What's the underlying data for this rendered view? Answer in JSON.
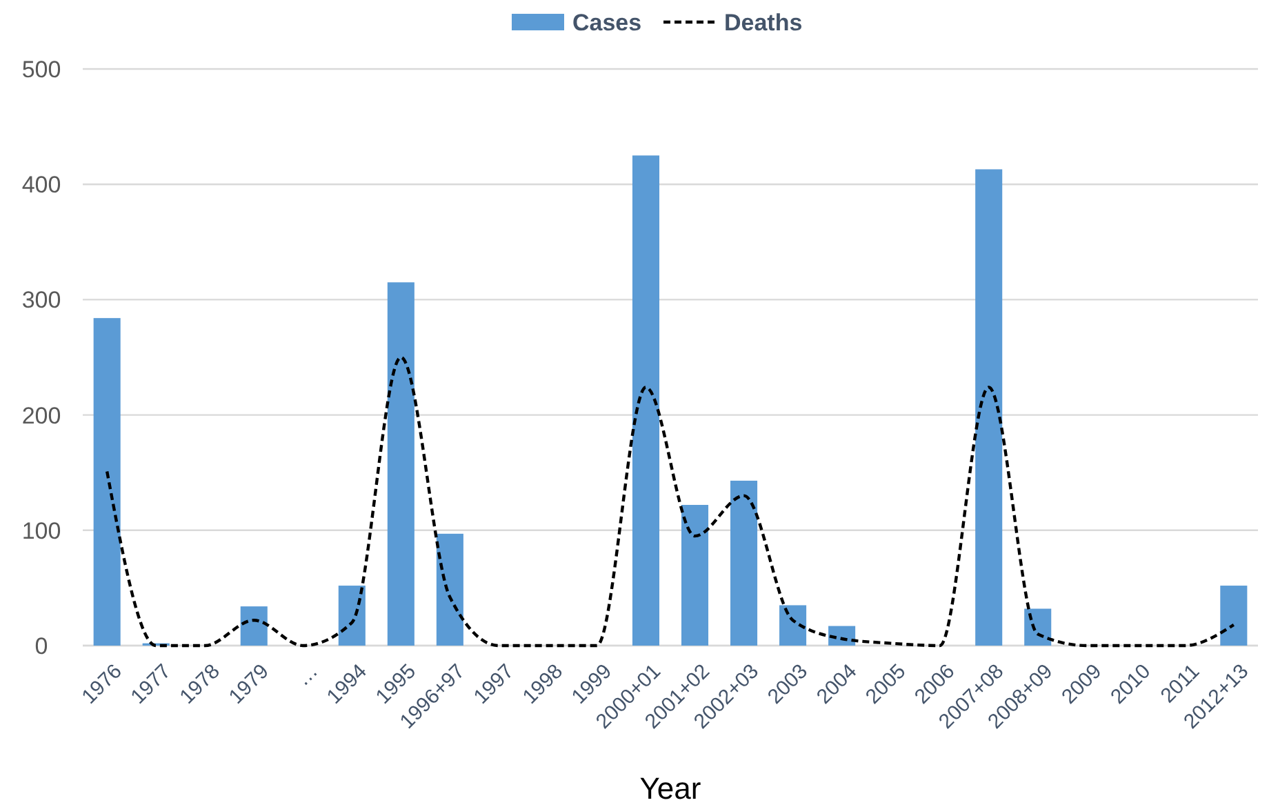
{
  "chart_data": {
    "type": "bar",
    "xlabel": "Year",
    "categories": [
      "1976",
      "1977",
      "1978",
      "1979",
      "…",
      "1994",
      "1995",
      "1996+97",
      "1997",
      "1998",
      "1999",
      "2000+01",
      "2001+02",
      "2002+03",
      "2003",
      "2004",
      "2005",
      "2006",
      "2007+08",
      "2008+09",
      "2009",
      "2010",
      "2011",
      "2012+13"
    ],
    "series": [
      {
        "name": "Cases",
        "color": "#5b9bd5",
        "values": [
          284,
          2,
          0,
          34,
          0,
          52,
          315,
          97,
          0,
          0,
          0,
          425,
          122,
          143,
          35,
          17,
          0,
          0,
          413,
          32,
          0,
          0,
          0,
          52
        ]
      },
      {
        "name": "Deaths",
        "type": "line",
        "color": "#000000",
        "line_style": "dashed",
        "marker": "none",
        "values": [
          151,
          0,
          0,
          22,
          0,
          20,
          250,
          42,
          0,
          0,
          0,
          224,
          95,
          130,
          22,
          6,
          2,
          0,
          224,
          10,
          0,
          0,
          0,
          18
        ]
      }
    ],
    "ylim": [
      0,
      500
    ],
    "yticks": [
      0,
      100,
      200,
      300,
      400,
      500
    ],
    "grid": "y",
    "legend": "top"
  }
}
